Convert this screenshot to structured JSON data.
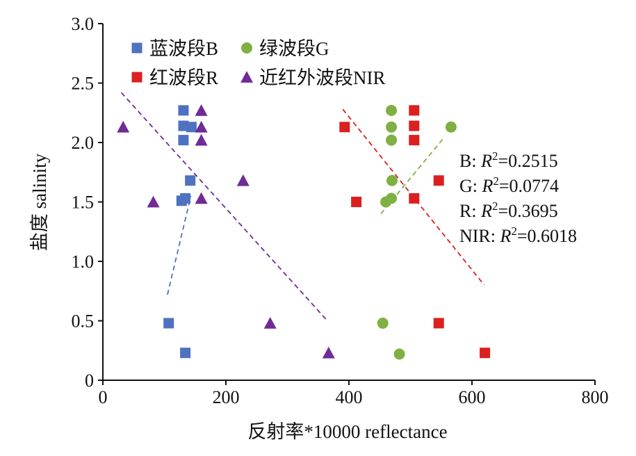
{
  "chart_data": {
    "type": "scatter",
    "xlabel": "反射率*10000 reflectance",
    "ylabel": "盐度 salinity",
    "xlim": [
      0,
      800
    ],
    "ylim": [
      0,
      3.0
    ],
    "x_ticks": [
      0,
      200,
      400,
      600,
      800
    ],
    "y_ticks": [
      "0",
      "0.5",
      "1.0",
      "1.5",
      "2.0",
      "2.5",
      "3.0"
    ],
    "grid": false,
    "legend_position": "top-left",
    "series": [
      {
        "name": "蓝波段B",
        "marker": "square",
        "color": "#4e72c0",
        "points": [
          [
            131,
            2.27
          ],
          [
            131,
            2.14
          ],
          [
            144,
            2.13
          ],
          [
            131,
            2.02
          ],
          [
            142,
            1.68
          ],
          [
            134,
            1.53
          ],
          [
            128,
            1.51
          ],
          [
            107,
            0.48
          ],
          [
            134,
            0.23
          ]
        ],
        "trendline": {
          "from": [
            105,
            0.72
          ],
          "to": [
            143,
            1.55
          ]
        }
      },
      {
        "name": "绿波段G",
        "marker": "circle",
        "color": "#7fb043",
        "points": [
          [
            469,
            2.27
          ],
          [
            469,
            2.13
          ],
          [
            566,
            2.13
          ],
          [
            469,
            2.02
          ],
          [
            470,
            1.68
          ],
          [
            469,
            1.53
          ],
          [
            460,
            1.5
          ],
          [
            455,
            0.48
          ],
          [
            482,
            0.22
          ]
        ],
        "trendline": {
          "from": [
            452,
            1.4
          ],
          "to": [
            556,
            2.05
          ]
        }
      },
      {
        "name": "红波段R",
        "marker": "square",
        "color": "#dc1f1f",
        "points": [
          [
            506,
            2.27
          ],
          [
            506,
            2.14
          ],
          [
            393,
            2.13
          ],
          [
            506,
            2.02
          ],
          [
            546,
            1.68
          ],
          [
            506,
            1.53
          ],
          [
            412,
            1.5
          ],
          [
            546,
            0.48
          ],
          [
            621,
            0.23
          ]
        ],
        "trendline": {
          "from": [
            390,
            2.28
          ],
          "to": [
            620,
            0.8
          ]
        }
      },
      {
        "name": "近红外波段NIR",
        "marker": "triangle",
        "color": "#6f2b96",
        "points": [
          [
            160,
            2.27
          ],
          [
            160,
            2.13
          ],
          [
            33,
            2.13
          ],
          [
            160,
            2.02
          ],
          [
            228,
            1.68
          ],
          [
            160,
            1.53
          ],
          [
            82,
            1.5
          ],
          [
            272,
            0.48
          ],
          [
            367,
            0.23
          ]
        ],
        "trendline": {
          "from": [
            30,
            2.42
          ],
          "to": [
            365,
            0.5
          ]
        }
      }
    ],
    "annotations": [
      {
        "band": "B: ",
        "r2_symbol": "R",
        "r2_exp": "2",
        "value": "=0.2515"
      },
      {
        "band": "G: ",
        "r2_symbol": "R",
        "r2_exp": "2",
        "value": "=0.0774"
      },
      {
        "band": "R: ",
        "r2_symbol": "R",
        "r2_exp": "2",
        "value": "=0.3695"
      },
      {
        "band": "NIR: ",
        "r2_symbol": "R",
        "r2_exp": "2",
        "value": "=0.6018"
      }
    ]
  }
}
